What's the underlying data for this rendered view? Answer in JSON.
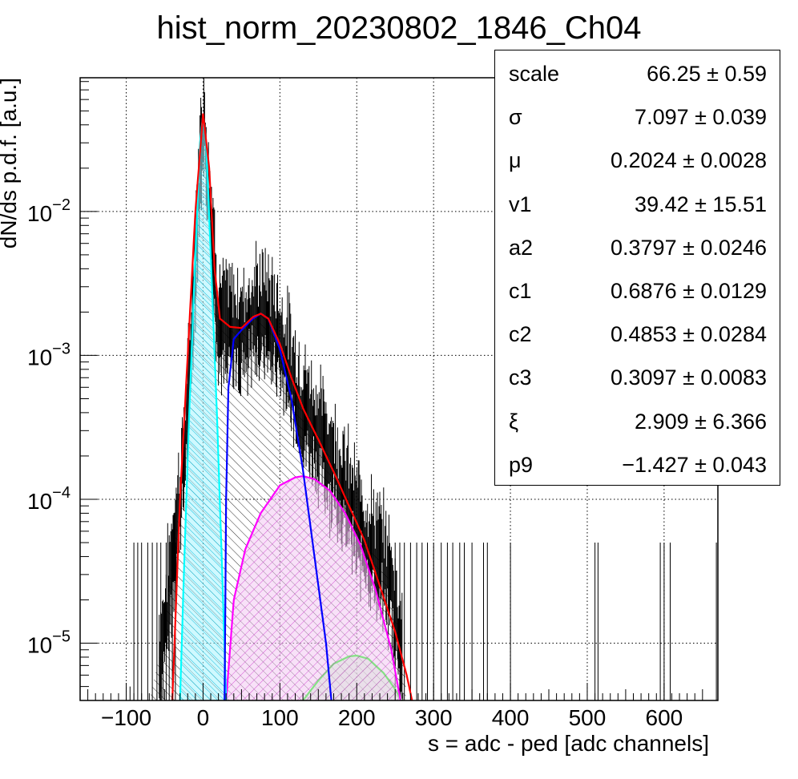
{
  "chart_data": {
    "type": "histogram",
    "title": "hist_norm_20230802_1846_Ch04",
    "xlabel": "s = adc - ped [adc channels]",
    "ylabel": "dN/ds p.d.f. [a.u.]",
    "xlim": [
      -160,
      670
    ],
    "ylim": [
      4e-06,
      0.085
    ],
    "y_scale": "log",
    "grid": true,
    "x_ticks": [
      -100,
      0,
      100,
      200,
      300,
      400,
      500,
      600
    ],
    "x_tick_labels": [
      "−100",
      "0",
      "100",
      "200",
      "300",
      "400",
      "500",
      "600"
    ],
    "y_ticks": [
      1e-05,
      0.0001,
      0.001,
      0.01
    ],
    "y_tick_labels": [
      {
        "base": "10",
        "exp": "−5"
      },
      {
        "base": "10",
        "exp": "−4"
      },
      {
        "base": "10",
        "exp": "−3"
      },
      {
        "base": "10",
        "exp": "−2"
      }
    ],
    "histogram": {
      "color": "#000000",
      "profile": [
        [
          -75,
          3e-06
        ],
        [
          -50,
          1.2e-05
        ],
        [
          -40,
          4e-05
        ],
        [
          -30,
          0.0001
        ],
        [
          -20,
          0.0004
        ],
        [
          -10,
          0.005
        ],
        [
          0,
          0.045
        ],
        [
          10,
          0.01
        ],
        [
          20,
          0.0018
        ],
        [
          30,
          0.00155
        ],
        [
          50,
          0.00145
        ],
        [
          70,
          0.0019
        ],
        [
          80,
          0.00195
        ],
        [
          95,
          0.0015
        ],
        [
          110,
          0.0009
        ],
        [
          125,
          0.0005
        ],
        [
          145,
          0.00032
        ],
        [
          165,
          0.0002
        ],
        [
          185,
          0.00011
        ],
        [
          200,
          7e-05
        ],
        [
          215,
          5e-05
        ],
        [
          230,
          3.8e-05
        ],
        [
          245,
          2.5e-05
        ],
        [
          255,
          1.2e-05
        ],
        [
          265,
          5e-06
        ]
      ],
      "sparse_bins_x": [
        -90,
        -85,
        -80,
        -72,
        -66,
        -60,
        -55,
        -48,
        -44,
        -40,
        -36,
        250,
        256,
        262,
        270,
        278,
        285,
        292,
        300,
        310,
        318,
        325,
        334,
        340,
        350,
        365,
        370,
        400,
        510,
        514,
        595,
        600,
        608,
        668
      ],
      "sparse_bin_height": 5e-05,
      "sparse_bins_small_x": [
        -100,
        -95
      ],
      "sparse_bin_small_height": 5e-06
    },
    "series": [
      {
        "color": "#ff0000",
        "points": [
          [
            -40,
            4e-06
          ],
          [
            -30,
            0.0001
          ],
          [
            -20,
            0.001
          ],
          [
            -10,
            0.01
          ],
          [
            0,
            0.048
          ],
          [
            8,
            0.02
          ],
          [
            15,
            0.004
          ],
          [
            22,
            0.0018
          ],
          [
            35,
            0.00158
          ],
          [
            50,
            0.00155
          ],
          [
            65,
            0.00185
          ],
          [
            75,
            0.00195
          ],
          [
            85,
            0.0018
          ],
          [
            100,
            0.0012
          ],
          [
            115,
            0.0007
          ],
          [
            130,
            0.00043
          ],
          [
            150,
            0.00026
          ],
          [
            170,
            0.000155
          ],
          [
            190,
            9e-05
          ],
          [
            210,
            5.2e-05
          ],
          [
            230,
            2.5e-05
          ],
          [
            250,
            1.2e-05
          ],
          [
            265,
            6e-06
          ],
          [
            272,
            4e-06
          ]
        ]
      },
      {
        "color": "#00ffff",
        "fill": "#a8f4ff",
        "points": [
          [
            -30,
            4e-06
          ],
          [
            -25,
            3e-05
          ],
          [
            -18,
            0.0004
          ],
          [
            -10,
            0.005
          ],
          [
            -4,
            0.03
          ],
          [
            0,
            0.047
          ],
          [
            4,
            0.03
          ],
          [
            10,
            0.005
          ],
          [
            18,
            0.0004
          ],
          [
            25,
            3e-05
          ],
          [
            30,
            4e-06
          ]
        ]
      },
      {
        "color": "#0000ff",
        "points": [
          [
            28,
            4e-06
          ],
          [
            30,
            0.0001
          ],
          [
            33,
            0.0006
          ],
          [
            40,
            0.0013
          ],
          [
            50,
            0.0015
          ],
          [
            65,
            0.0018
          ],
          [
            75,
            0.00195
          ],
          [
            85,
            0.0018
          ],
          [
            100,
            0.0011
          ],
          [
            115,
            0.0005
          ],
          [
            130,
            0.00016
          ],
          [
            145,
            4e-05
          ],
          [
            160,
            1e-05
          ],
          [
            167,
            4e-06
          ]
        ]
      },
      {
        "color": "#ff00ff",
        "fill": "#f2c8f2",
        "points": [
          [
            30,
            4e-06
          ],
          [
            40,
            2e-05
          ],
          [
            55,
            4.5e-05
          ],
          [
            75,
            8e-05
          ],
          [
            100,
            0.000125
          ],
          [
            120,
            0.000142
          ],
          [
            130,
            0.000145
          ],
          [
            145,
            0.000138
          ],
          [
            165,
            0.000115
          ],
          [
            185,
            8e-05
          ],
          [
            205,
            4.8e-05
          ],
          [
            225,
            2.3e-05
          ],
          [
            245,
            9e-06
          ],
          [
            257,
            4e-06
          ]
        ]
      },
      {
        "color": "#00ff00",
        "fill": "#c8f5c8",
        "points": [
          [
            130,
            4e-06
          ],
          [
            150,
            5.5e-06
          ],
          [
            170,
            7.2e-06
          ],
          [
            190,
            8.1e-06
          ],
          [
            200,
            8.2e-06
          ],
          [
            215,
            7.8e-06
          ],
          [
            235,
            6.2e-06
          ],
          [
            250,
            4.8e-06
          ],
          [
            258,
            4e-06
          ]
        ]
      }
    ],
    "legend_placement": "top-right",
    "stats": [
      {
        "name": "scale",
        "value": "66.25 ± 0.59"
      },
      {
        "name": "σ",
        "value": "7.097 ± 0.039"
      },
      {
        "name": "μ",
        "value": "0.2024 ± 0.0028"
      },
      {
        "name": "v1",
        "value": "39.42 ± 15.51"
      },
      {
        "name": "a2",
        "value": "0.3797 ± 0.0246"
      },
      {
        "name": "c1",
        "value": "0.6876 ± 0.0129"
      },
      {
        "name": "c2",
        "value": "0.4853 ± 0.0284"
      },
      {
        "name": "c3",
        "value": "0.3097 ± 0.0083"
      },
      {
        "name": "ξ",
        "value": "2.909 ± 6.366"
      },
      {
        "name": "p9",
        "value": "−1.427 ± 0.043"
      }
    ]
  }
}
